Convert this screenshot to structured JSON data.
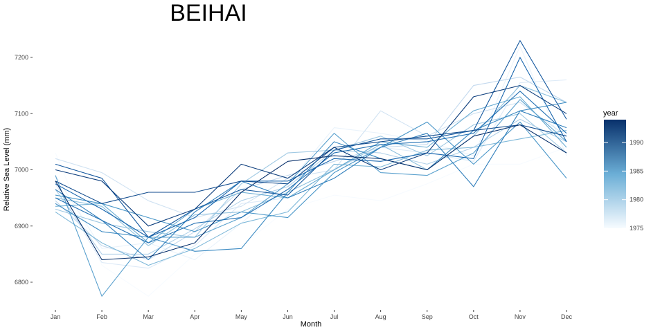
{
  "chart_data": {
    "type": "line",
    "title": "BEIHAI",
    "xlabel": "Month",
    "ylabel": "Relative Sea Level (mm)",
    "categories": [
      "Jan",
      "Feb",
      "Mar",
      "Apr",
      "May",
      "Jun",
      "Jul",
      "Aug",
      "Sep",
      "Oct",
      "Nov",
      "Dec"
    ],
    "ylim": [
      6750,
      7230
    ],
    "yticks": [
      6800,
      6900,
      7000,
      7100,
      7200
    ],
    "ytick_labels": [
      "6800",
      "6900",
      "7000",
      "7100",
      "7200"
    ],
    "grid": false,
    "legend": {
      "title": "year",
      "range": [
        1975,
        1994
      ],
      "ticks": [
        1975,
        1980,
        1985,
        1990
      ],
      "tick_labels": [
        "1975",
        "1980",
        "1985",
        "1990"
      ],
      "placement": "right",
      "color_low": "#f7fbff",
      "color_high": "#08306b"
    },
    "series": [
      {
        "name": "1975",
        "values": [
          7030,
          6830,
          6775,
          6850,
          6865,
          6930,
          6955,
          6945,
          6975,
          7010,
          7010,
          7040
        ]
      },
      {
        "name": "1976",
        "values": [
          6990,
          6860,
          6870,
          6840,
          6905,
          6975,
          7075,
          7065,
          7050,
          7025,
          7220,
          7025
        ]
      },
      {
        "name": "1977",
        "values": [
          6975,
          6835,
          6825,
          6865,
          6940,
          6950,
          7000,
          7040,
          7030,
          7015,
          7155,
          7160
        ]
      },
      {
        "name": "1978",
        "values": [
          7020,
          6995,
          6945,
          6915,
          6935,
          6985,
          7000,
          7105,
          7060,
          7100,
          7120,
          7060
        ]
      },
      {
        "name": "1979",
        "values": [
          6945,
          6865,
          6840,
          6890,
          6965,
          6990,
          7015,
          7040,
          7045,
          7150,
          7165,
          7120
        ]
      },
      {
        "name": "1980",
        "values": [
          6965,
          6850,
          6850,
          6895,
          6945,
          6970,
          7035,
          7030,
          7010,
          7040,
          7090,
          7050
        ]
      },
      {
        "name": "1981",
        "values": [
          6930,
          6905,
          6890,
          6880,
          6975,
          7030,
          7035,
          7060,
          7025,
          7080,
          7100,
          7030
        ]
      },
      {
        "name": "1982",
        "values": [
          6950,
          6935,
          6865,
          6920,
          6925,
          6960,
          7000,
          7045,
          7000,
          7060,
          7150,
          7120
        ]
      },
      {
        "name": "1983",
        "values": [
          6925,
          6870,
          6830,
          6860,
          6905,
          6925,
          7010,
          7005,
          7035,
          7040,
          7055,
          7070
        ]
      },
      {
        "name": "1984",
        "values": [
          6935,
          6940,
          6870,
          6930,
          6960,
          6950,
          7000,
          7050,
          7040,
          7105,
          7130,
          7040
        ]
      },
      {
        "name": "1985",
        "values": [
          6990,
          6775,
          6880,
          6880,
          6915,
          6975,
          7065,
          6995,
          6990,
          7030,
          7125,
          7050
        ]
      },
      {
        "name": "1986",
        "values": [
          6955,
          6940,
          6915,
          6890,
          6925,
          6915,
          6995,
          7040,
          7085,
          7010,
          7085,
          6985
        ]
      },
      {
        "name": "1987",
        "values": [
          6940,
          6890,
          6880,
          6855,
          6860,
          6960,
          7050,
          7020,
          7000,
          7070,
          7105,
          7120
        ]
      },
      {
        "name": "1988",
        "values": [
          6965,
          6910,
          6840,
          6925,
          6980,
          6950,
          6985,
          7040,
          7065,
          6970,
          7105,
          7075
        ]
      },
      {
        "name": "1989",
        "values": [
          6950,
          6910,
          6870,
          6905,
          6915,
          6965,
          7030,
          7045,
          7050,
          7065,
          7140,
          7065
        ]
      },
      {
        "name": "1990",
        "values": [
          6975,
          6930,
          6880,
          6915,
          6980,
          6980,
          7020,
          7015,
          7030,
          7020,
          7200,
          7050
        ]
      },
      {
        "name": "1991",
        "values": [
          7010,
          6985,
          6880,
          6930,
          6965,
          6955,
          7035,
          7055,
          7055,
          7070,
          7230,
          7090
        ]
      },
      {
        "name": "1992",
        "values": [
          6980,
          6940,
          6960,
          6960,
          6980,
          6975,
          7040,
          7050,
          7060,
          7070,
          7080,
          7060
        ]
      },
      {
        "name": "1993",
        "values": [
          7000,
          6980,
          6900,
          6930,
          7010,
          6985,
          7040,
          7000,
          7030,
          7130,
          7150,
          7100
        ]
      },
      {
        "name": "1994",
        "values": [
          6980,
          6840,
          6845,
          6870,
          6960,
          7015,
          7025,
          7020,
          7000,
          7060,
          7080,
          7030
        ]
      }
    ]
  }
}
